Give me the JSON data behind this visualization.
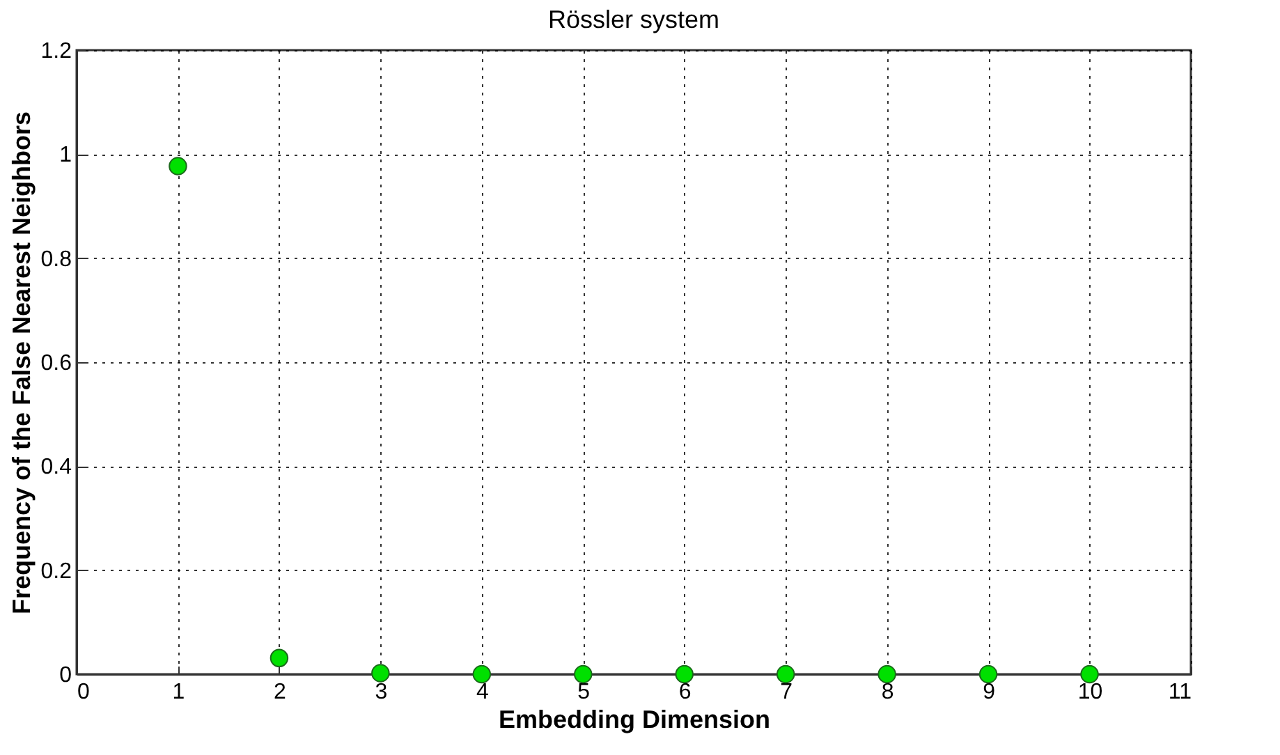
{
  "chart_data": {
    "type": "scatter",
    "title": "Rössler system",
    "xlabel": "Embedding Dimension",
    "ylabel": "Frequency of the False Nearest Neighbors",
    "x": [
      1,
      2,
      3,
      4,
      5,
      6,
      7,
      8,
      9,
      10
    ],
    "series": [
      {
        "color": "#00e000",
        "values": [
          0.977,
          0.031,
          0.002,
          0,
          0,
          0,
          0,
          0,
          0,
          0
        ]
      }
    ],
    "xlim": [
      0,
      11
    ],
    "xticks": [
      0,
      1,
      2,
      3,
      4,
      5,
      6,
      7,
      8,
      9,
      10,
      11
    ],
    "ylim": [
      0,
      1.2
    ],
    "yticks": [
      0,
      0.2,
      0.4,
      0.6,
      0.8,
      1,
      1.2
    ],
    "grid": true,
    "marker": "circle",
    "legend": false
  }
}
